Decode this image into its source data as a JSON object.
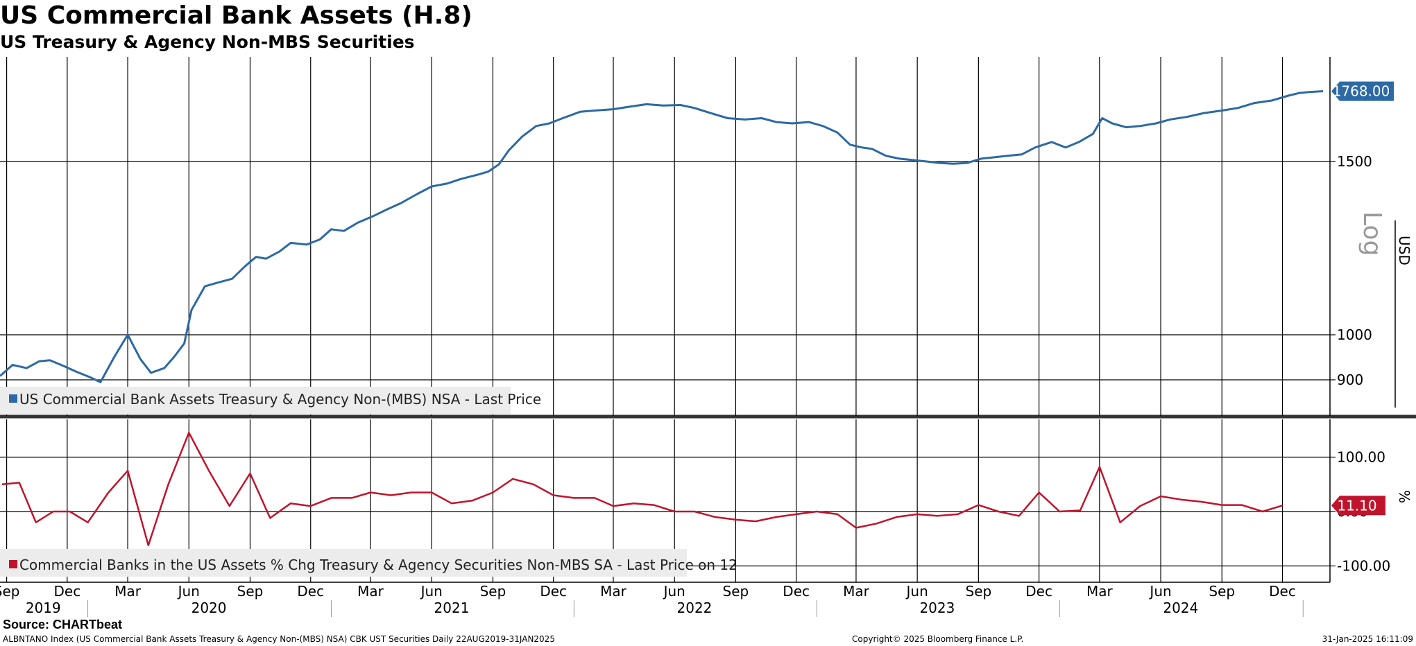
{
  "title": "US Commercial Bank Assets (H.8)",
  "subtitle": "US Treasury & Agency Non-MBS Securities",
  "footer": {
    "source": "Source: CHARTbeat",
    "ticker_line": "ALBNTANO Index (US Commercial Bank Assets Treasury & Agency Non-(MBS) NSA) CBK UST Securities  Daily 22AUG2019-31JAN2025",
    "copyright": "Copyright© 2025 Bloomberg Finance L.P.",
    "timestamp": "31-Jan-2025 16:11:09"
  },
  "colors": {
    "series1": "#2c69a5",
    "series2": "#c0142d",
    "grid": "#000000",
    "legend_bg": "#ececec"
  },
  "chart_data": [
    {
      "type": "line",
      "panel": "top",
      "scale": "log",
      "ylabel": "USD",
      "scale_label": "Log",
      "yticks": [
        900,
        1000,
        1500
      ],
      "legend": "US Commercial Bank Assets Treasury & Agency Non-(MBS) NSA - Last Price",
      "last_value_label": "1768.00",
      "series": [
        {
          "name": "US Commercial Bank Assets Treasury & Agency Non-(MBS) NSA - Last Price",
          "points": [
            [
              "2019-08-22",
              908
            ],
            [
              "2019-09-10",
              932
            ],
            [
              "2019-10-01",
              925
            ],
            [
              "2019-10-20",
              940
            ],
            [
              "2019-11-05",
              942
            ],
            [
              "2019-11-25",
              930
            ],
            [
              "2019-12-15",
              917
            ],
            [
              "2020-01-05",
              905
            ],
            [
              "2020-01-20",
              895
            ],
            [
              "2020-02-10",
              950
            ],
            [
              "2020-03-01",
              1000
            ],
            [
              "2020-03-20",
              945
            ],
            [
              "2020-04-05",
              915
            ],
            [
              "2020-04-25",
              925
            ],
            [
              "2020-05-10",
              950
            ],
            [
              "2020-05-25",
              980
            ],
            [
              "2020-06-05",
              1060
            ],
            [
              "2020-06-25",
              1120
            ],
            [
              "2020-07-15",
              1130
            ],
            [
              "2020-08-05",
              1140
            ],
            [
              "2020-08-25",
              1175
            ],
            [
              "2020-09-10",
              1200
            ],
            [
              "2020-09-25",
              1195
            ],
            [
              "2020-10-15",
              1215
            ],
            [
              "2020-11-01",
              1240
            ],
            [
              "2020-11-25",
              1235
            ],
            [
              "2020-12-15",
              1250
            ],
            [
              "2021-01-01",
              1280
            ],
            [
              "2021-01-20",
              1275
            ],
            [
              "2021-02-10",
              1300
            ],
            [
              "2021-03-05",
              1320
            ],
            [
              "2021-03-25",
              1340
            ],
            [
              "2021-04-15",
              1360
            ],
            [
              "2021-05-10",
              1390
            ],
            [
              "2021-06-01",
              1415
            ],
            [
              "2021-06-25",
              1425
            ],
            [
              "2021-07-15",
              1440
            ],
            [
              "2021-08-10",
              1455
            ],
            [
              "2021-08-25",
              1465
            ],
            [
              "2021-09-10",
              1490
            ],
            [
              "2021-09-25",
              1540
            ],
            [
              "2021-10-15",
              1590
            ],
            [
              "2021-11-05",
              1630
            ],
            [
              "2021-11-25",
              1640
            ],
            [
              "2021-12-15",
              1660
            ],
            [
              "2022-01-10",
              1685
            ],
            [
              "2022-02-01",
              1690
            ],
            [
              "2022-03-01",
              1695
            ],
            [
              "2022-03-25",
              1705
            ],
            [
              "2022-04-20",
              1715
            ],
            [
              "2022-05-15",
              1710
            ],
            [
              "2022-06-10",
              1712
            ],
            [
              "2022-07-01",
              1700
            ],
            [
              "2022-07-25",
              1680
            ],
            [
              "2022-08-20",
              1660
            ],
            [
              "2022-09-15",
              1655
            ],
            [
              "2022-10-10",
              1660
            ],
            [
              "2022-11-01",
              1645
            ],
            [
              "2022-11-25",
              1640
            ],
            [
              "2022-12-20",
              1645
            ],
            [
              "2023-01-10",
              1630
            ],
            [
              "2023-02-01",
              1605
            ],
            [
              "2023-02-20",
              1560
            ],
            [
              "2023-03-10",
              1550
            ],
            [
              "2023-03-25",
              1545
            ],
            [
              "2023-04-15",
              1520
            ],
            [
              "2023-05-05",
              1510
            ],
            [
              "2023-05-25",
              1505
            ],
            [
              "2023-06-15",
              1500
            ],
            [
              "2023-07-05",
              1495
            ],
            [
              "2023-07-25",
              1492
            ],
            [
              "2023-08-15",
              1495
            ],
            [
              "2023-09-05",
              1510
            ],
            [
              "2023-09-25",
              1515
            ],
            [
              "2023-10-15",
              1520
            ],
            [
              "2023-11-05",
              1525
            ],
            [
              "2023-11-25",
              1550
            ],
            [
              "2023-12-20",
              1570
            ],
            [
              "2024-01-10",
              1550
            ],
            [
              "2024-01-30",
              1570
            ],
            [
              "2024-02-20",
              1600
            ],
            [
              "2024-03-05",
              1660
            ],
            [
              "2024-03-20",
              1640
            ],
            [
              "2024-04-10",
              1625
            ],
            [
              "2024-05-01",
              1630
            ],
            [
              "2024-05-25",
              1640
            ],
            [
              "2024-06-15",
              1655
            ],
            [
              "2024-07-10",
              1665
            ],
            [
              "2024-08-05",
              1680
            ],
            [
              "2024-09-01",
              1690
            ],
            [
              "2024-09-25",
              1700
            ],
            [
              "2024-10-20",
              1720
            ],
            [
              "2024-11-15",
              1730
            ],
            [
              "2024-12-10",
              1750
            ],
            [
              "2024-12-25",
              1760
            ],
            [
              "2025-01-10",
              1765
            ],
            [
              "2025-01-31",
              1768
            ]
          ]
        }
      ]
    },
    {
      "type": "line",
      "panel": "bottom",
      "ylabel": "%",
      "yticks": [
        -100,
        0,
        100
      ],
      "ytick_labels": [
        "-100.00",
        "0.00",
        "100.00"
      ],
      "legend": "Commercial Banks in the US Assets % Chg Treasury & Agency Securities Non-MBS SA - Last Price on 12",
      "last_value_label": "11.10",
      "series": [
        {
          "name": "Commercial Banks in the US Assets % Chg Treasury & Agency Securities Non-MBS SA - Last Price on 12",
          "points": [
            [
              "2019-08-25",
              50
            ],
            [
              "2019-09-20",
              53
            ],
            [
              "2019-10-15",
              -20
            ],
            [
              "2019-11-10",
              0
            ],
            [
              "2019-12-05",
              0
            ],
            [
              "2020-01-01",
              -20
            ],
            [
              "2020-02-01",
              35
            ],
            [
              "2020-03-01",
              75
            ],
            [
              "2020-04-01",
              -62
            ],
            [
              "2020-05-01",
              50
            ],
            [
              "2020-06-01",
              145
            ],
            [
              "2020-07-01",
              75
            ],
            [
              "2020-08-01",
              10
            ],
            [
              "2020-09-01",
              70
            ],
            [
              "2020-10-01",
              -12
            ],
            [
              "2020-11-01",
              15
            ],
            [
              "2020-12-01",
              10
            ],
            [
              "2021-01-01",
              25
            ],
            [
              "2021-02-01",
              25
            ],
            [
              "2021-03-01",
              35
            ],
            [
              "2021-04-01",
              30
            ],
            [
              "2021-05-01",
              35
            ],
            [
              "2021-06-01",
              35
            ],
            [
              "2021-07-01",
              15
            ],
            [
              "2021-08-01",
              20
            ],
            [
              "2021-09-01",
              35
            ],
            [
              "2021-10-01",
              60
            ],
            [
              "2021-11-01",
              50
            ],
            [
              "2021-12-01",
              30
            ],
            [
              "2022-01-01",
              25
            ],
            [
              "2022-02-01",
              25
            ],
            [
              "2022-03-01",
              10
            ],
            [
              "2022-04-01",
              15
            ],
            [
              "2022-05-01",
              12
            ],
            [
              "2022-06-01",
              0
            ],
            [
              "2022-07-01",
              0
            ],
            [
              "2022-08-01",
              -10
            ],
            [
              "2022-09-01",
              -15
            ],
            [
              "2022-10-01",
              -18
            ],
            [
              "2022-11-01",
              -10
            ],
            [
              "2022-12-01",
              -5
            ],
            [
              "2023-01-01",
              0
            ],
            [
              "2023-02-01",
              -5
            ],
            [
              "2023-03-01",
              -30
            ],
            [
              "2023-04-01",
              -22
            ],
            [
              "2023-05-01",
              -10
            ],
            [
              "2023-06-01",
              -5
            ],
            [
              "2023-07-01",
              -8
            ],
            [
              "2023-08-01",
              -5
            ],
            [
              "2023-09-01",
              12
            ],
            [
              "2023-10-01",
              0
            ],
            [
              "2023-11-01",
              -8
            ],
            [
              "2023-12-01",
              35
            ],
            [
              "2024-01-01",
              0
            ],
            [
              "2024-02-01",
              2
            ],
            [
              "2024-03-01",
              82
            ],
            [
              "2024-04-01",
              -20
            ],
            [
              "2024-05-01",
              10
            ],
            [
              "2024-06-01",
              28
            ],
            [
              "2024-07-01",
              22
            ],
            [
              "2024-08-01",
              18
            ],
            [
              "2024-09-01",
              12
            ],
            [
              "2024-10-01",
              12
            ],
            [
              "2024-11-01",
              0
            ],
            [
              "2024-12-01",
              11.1
            ]
          ]
        }
      ]
    }
  ],
  "xaxis": {
    "start": "2019-08-22",
    "end": "2025-01-31",
    "month_ticks": [
      {
        "label": "Sep",
        "date": "2019-09-01"
      },
      {
        "label": "Dec",
        "date": "2019-12-01"
      },
      {
        "label": "Mar",
        "date": "2020-03-01"
      },
      {
        "label": "Jun",
        "date": "2020-06-01"
      },
      {
        "label": "Sep",
        "date": "2020-09-01"
      },
      {
        "label": "Dec",
        "date": "2020-12-01"
      },
      {
        "label": "Mar",
        "date": "2021-03-01"
      },
      {
        "label": "Jun",
        "date": "2021-06-01"
      },
      {
        "label": "Sep",
        "date": "2021-09-01"
      },
      {
        "label": "Dec",
        "date": "2021-12-01"
      },
      {
        "label": "Mar",
        "date": "2022-03-01"
      },
      {
        "label": "Jun",
        "date": "2022-06-01"
      },
      {
        "label": "Sep",
        "date": "2022-09-01"
      },
      {
        "label": "Dec",
        "date": "2022-12-01"
      },
      {
        "label": "Mar",
        "date": "2023-03-01"
      },
      {
        "label": "Jun",
        "date": "2023-06-01"
      },
      {
        "label": "Sep",
        "date": "2023-09-01"
      },
      {
        "label": "Dec",
        "date": "2023-12-01"
      },
      {
        "label": "Mar",
        "date": "2024-03-01"
      },
      {
        "label": "Jun",
        "date": "2024-06-01"
      },
      {
        "label": "Sep",
        "date": "2024-09-01"
      },
      {
        "label": "Dec",
        "date": "2024-12-01"
      }
    ],
    "year_labels": [
      {
        "label": "2019",
        "date": "2019-10-26"
      },
      {
        "label": "2020",
        "date": "2020-07-01"
      },
      {
        "label": "2021",
        "date": "2021-07-01"
      },
      {
        "label": "2022",
        "date": "2022-07-01"
      },
      {
        "label": "2023",
        "date": "2023-07-01"
      },
      {
        "label": "2024",
        "date": "2024-07-01"
      }
    ],
    "year_boundaries": [
      "2020-01-01",
      "2021-01-01",
      "2022-01-01",
      "2023-01-01",
      "2024-01-01",
      "2025-01-01"
    ]
  }
}
